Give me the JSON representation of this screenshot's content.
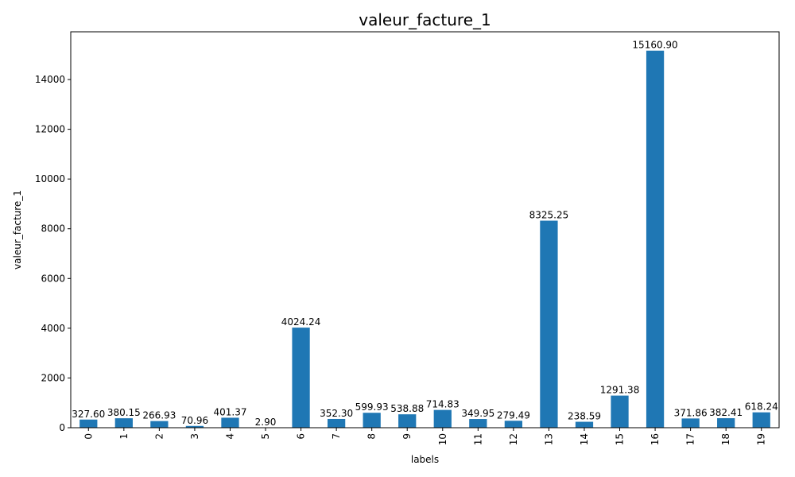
{
  "chart_data": {
    "type": "bar",
    "title": "valeur_facture_1",
    "xlabel": "labels",
    "ylabel": "valeur_facture_1",
    "categories": [
      "0",
      "1",
      "2",
      "3",
      "4",
      "5",
      "6",
      "7",
      "8",
      "9",
      "10",
      "11",
      "12",
      "13",
      "14",
      "15",
      "16",
      "17",
      "18",
      "19"
    ],
    "values": [
      327.6,
      380.15,
      266.93,
      70.96,
      401.37,
      2.9,
      4024.24,
      352.3,
      599.93,
      538.88,
      714.83,
      349.95,
      279.49,
      8325.25,
      238.59,
      1291.38,
      15160.9,
      371.86,
      382.41,
      618.24
    ],
    "value_labels": [
      "327.60",
      "380.15",
      "266.93",
      "70.96",
      "401.37",
      "2.90",
      "4024.24",
      "352.30",
      "599.93",
      "538.88",
      "714.83",
      "349.95",
      "279.49",
      "8325.25",
      "238.59",
      "1291.38",
      "15160.90",
      "371.86",
      "382.41",
      "618.24"
    ],
    "ylim": [
      0,
      15918.945
    ],
    "yticks": [
      0,
      2000,
      4000,
      6000,
      8000,
      10000,
      12000,
      14000
    ],
    "ytick_labels": [
      "0",
      "2000",
      "4000",
      "6000",
      "8000",
      "10000",
      "12000",
      "14000"
    ],
    "bar_color": "#1f77b4",
    "grid": false,
    "legend": "none"
  }
}
